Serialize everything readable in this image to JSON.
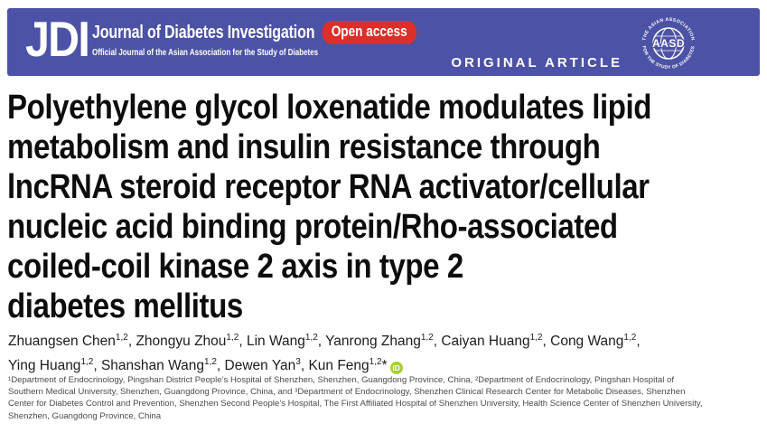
{
  "banner": {
    "logo_text": "JDI",
    "journal_title": "Journal of Diabetes Investigation",
    "open_access_label": "Open access",
    "journal_subtitle": "Official Journal of the Asian Association for the Study of Diabetes",
    "article_type": "ORIGINAL ARTICLE",
    "society_logo": {
      "arc_top": "THE ASIAN ASSOCIATION",
      "arc_bottom": "FOR THE STUDY OF DIABETES",
      "center": "AASD"
    },
    "colors": {
      "banner_bg": "#4c52a5",
      "open_access_bg": "#dc2f2a"
    }
  },
  "article": {
    "title_lines": [
      "Polyethylene glycol loxenatide modulates lipid",
      "metabolism and insulin resistance through",
      "lncRNA steroid receptor RNA activator/cellular",
      "nucleic acid binding protein/Rho-associated",
      "coiled-coil kinase 2 axis in type 2",
      "diabetes mellitus"
    ],
    "authors": {
      "line1": [
        {
          "name": "Zhuangsen Chen",
          "sup": "1,2"
        },
        {
          "name": "Zhongyu Zhou",
          "sup": "1,2"
        },
        {
          "name": "Lin Wang",
          "sup": "1,2"
        },
        {
          "name": "Yanrong Zhang",
          "sup": "1,2"
        },
        {
          "name": "Caiyan Huang",
          "sup": "1,2"
        },
        {
          "name": "Cong Wang",
          "sup": "1,2"
        }
      ],
      "line2": [
        {
          "name": "Ying Huang",
          "sup": "1,2"
        },
        {
          "name": "Shanshan Wang",
          "sup": "1,2"
        },
        {
          "name": "Dewen Yan",
          "sup": "3"
        },
        {
          "name": "Kun Feng",
          "sup": "1,2",
          "star": true,
          "orcid": true
        }
      ],
      "orcid_label": "iD",
      "orcid_color": "#a6ce39"
    },
    "affiliation_lines": [
      "¹Department of Endocrinology, Pingshan District People’s Hospital of Shenzhen, Shenzhen, Guangdong Province, China, ²Department of Endocrinology, Pingshan Hospital of",
      "Southern Medical University, Shenzhen, Guangdong Province, China, and ³Department of Endocrinology, Shenzhen Clinical Research Center for Metabolic Diseases, Shenzhen",
      "Center for Diabetes Control and Prevention, Shenzhen Second People’s Hospital, The First Affiliated Hospital of Shenzhen University, Health Science Center of Shenzhen University,",
      "Shenzhen, Guangdong Province, China"
    ]
  }
}
